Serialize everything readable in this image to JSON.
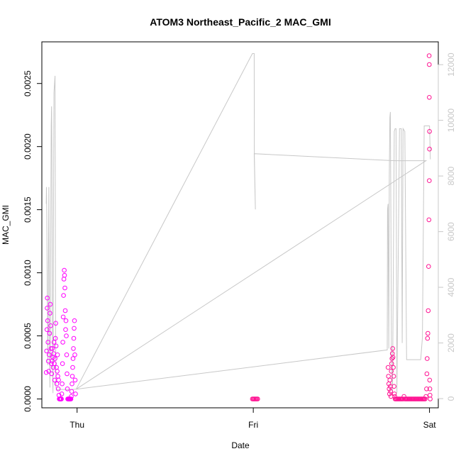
{
  "chart_data": {
    "type": "scatter",
    "title": "ATOM3 Northeast_Pacific_2 MAC_GMI",
    "xlabel": "Date",
    "ylabel": "MAC_GMI",
    "x_ticks": [
      "Thu",
      "Fri",
      "Sat"
    ],
    "x_range_days": [
      -0.2,
      2.05
    ],
    "y_ticks": [
      "0.0000",
      "0.0005",
      "0.0010",
      "0.0015",
      "0.0020",
      "0.0025"
    ],
    "ylim": [
      -7e-05,
      0.00283
    ],
    "y2_ticks": [
      "0",
      "2000",
      "4000",
      "6000",
      "8000",
      "10000",
      "12000"
    ],
    "y2lim": [
      -330,
      12820
    ],
    "grid": false,
    "colors": {
      "points": "#ff1493",
      "points_alt": "#ff00ff",
      "line": "#c8c8c8",
      "axis": "#000000",
      "axis2": "#c8c8c8"
    },
    "series": [
      {
        "type": "scatter",
        "y_axis": "left",
        "points": [
          [
            -0.175,
            0.00021
          ],
          [
            -0.173,
            0.00038
          ],
          [
            -0.171,
            0.00055
          ],
          [
            -0.17,
            0.00072
          ],
          [
            -0.169,
            0.0008
          ],
          [
            -0.167,
            0.00062
          ],
          [
            -0.165,
            0.00045
          ],
          [
            -0.163,
            0.0003
          ],
          [
            -0.161,
            0.00022
          ],
          [
            -0.158,
            0.00035
          ],
          [
            -0.156,
            0.00052
          ],
          [
            -0.154,
            0.00068
          ],
          [
            -0.152,
            0.00075
          ],
          [
            -0.15,
            0.00058
          ],
          [
            -0.148,
            0.0004
          ],
          [
            -0.146,
            0.00028
          ],
          [
            -0.144,
            0.0002
          ],
          [
            -0.142,
            0.0003
          ],
          [
            -0.14,
            0.0004
          ],
          [
            -0.137,
            0.00033
          ],
          [
            -0.135,
            0.00025
          ],
          [
            -0.133,
            0.00036
          ],
          [
            -0.131,
            0.00045
          ],
          [
            -0.129,
            0.00028
          ],
          [
            -0.127,
            0.00015
          ],
          [
            -0.125,
            0.00032
          ],
          [
            -0.123,
            0.00048
          ],
          [
            -0.121,
            0.0006
          ],
          [
            -0.119,
            0.00042
          ],
          [
            -0.117,
            0.00025
          ],
          [
            -0.115,
            0.00012
          ],
          [
            -0.113,
            0.00022
          ],
          [
            -0.111,
            0.00035
          ],
          [
            -0.109,
            0.00018
          ],
          [
            -0.107,
            8e-05
          ],
          [
            -0.105,
            0.00015
          ],
          [
            -0.103,
            3e-05
          ],
          [
            -0.101,
            0.0
          ],
          [
            -0.099,
            0.0
          ],
          [
            -0.097,
            0.0
          ],
          [
            -0.095,
            0.0
          ],
          [
            -0.093,
            0.0
          ],
          [
            -0.091,
            0.0
          ],
          [
            -0.089,
            0.0
          ],
          [
            -0.087,
            4e-05
          ],
          [
            -0.085,
            0.00012
          ],
          [
            -0.083,
            0.00028
          ],
          [
            -0.081,
            0.00045
          ],
          [
            -0.079,
            0.00065
          ],
          [
            -0.077,
            0.00082
          ],
          [
            -0.075,
            0.00095
          ],
          [
            -0.073,
            0.00102
          ],
          [
            -0.071,
            0.00098
          ],
          [
            -0.069,
            0.00088
          ],
          [
            -0.067,
            0.0007
          ],
          [
            -0.065,
            0.00055
          ],
          [
            -0.063,
            0.00062
          ],
          [
            -0.061,
            0.0005
          ],
          [
            -0.059,
            0.00035
          ],
          [
            -0.057,
            0.0002
          ],
          [
            -0.055,
            8e-05
          ],
          [
            -0.053,
            0.0
          ],
          [
            -0.051,
            0.0
          ],
          [
            -0.049,
            0.0
          ],
          [
            -0.047,
            0.0
          ],
          [
            -0.045,
            0.0
          ],
          [
            -0.043,
            0.0
          ],
          [
            -0.041,
            0.0
          ],
          [
            -0.039,
            0.0
          ],
          [
            -0.037,
            0.0
          ],
          [
            -0.035,
            0.0
          ],
          [
            -0.033,
            2e-05
          ],
          [
            -0.031,
            6e-05
          ],
          [
            -0.029,
            0.00012
          ],
          [
            -0.027,
            0.00018
          ],
          [
            -0.025,
            0.00025
          ],
          [
            -0.023,
            0.00032
          ],
          [
            -0.021,
            0.0004
          ],
          [
            -0.019,
            0.00048
          ],
          [
            -0.017,
            0.00056
          ],
          [
            -0.015,
            0.00062
          ],
          [
            -0.013,
            0.00035
          ],
          [
            -0.011,
            0.00015
          ],
          [
            -0.009,
            4e-05
          ],
          [
            0.995,
            0.0
          ],
          [
            1.0,
            0.0
          ],
          [
            1.005,
            0.0
          ],
          [
            1.01,
            0.0
          ],
          [
            1.015,
            0.0
          ],
          [
            1.02,
            0.0
          ],
          [
            1.025,
            0.0
          ],
          [
            1.765,
            0.00025
          ],
          [
            1.767,
            0.00018
          ],
          [
            1.769,
            0.00012
          ],
          [
            1.771,
            8e-05
          ],
          [
            1.773,
            4e-05
          ],
          [
            1.775,
            0.00015
          ],
          [
            1.777,
            0.0001
          ],
          [
            1.779,
            6e-05
          ],
          [
            1.781,
            2e-05
          ],
          [
            1.783,
            0.00022
          ],
          [
            1.785,
            0.00028
          ],
          [
            1.787,
            0.00032
          ],
          [
            1.789,
            0.00036
          ],
          [
            1.791,
            0.0004
          ],
          [
            1.793,
            0.00033
          ],
          [
            1.795,
            0.00025
          ],
          [
            1.797,
            0.00018
          ],
          [
            1.799,
            0.0001
          ],
          [
            1.801,
            4e-05
          ],
          [
            1.803,
            2e-05
          ],
          [
            1.805,
            0.0
          ],
          [
            1.81,
            0.0
          ],
          [
            1.815,
            0.0
          ],
          [
            1.82,
            0.0
          ],
          [
            1.825,
            0.0
          ],
          [
            1.83,
            0.0
          ],
          [
            1.835,
            0.0
          ],
          [
            1.84,
            0.0
          ],
          [
            1.845,
            0.0
          ],
          [
            1.85,
            0.0
          ],
          [
            1.855,
            2e-05
          ],
          [
            1.86,
            0.0
          ],
          [
            1.865,
            0.0
          ],
          [
            1.87,
            0.0
          ],
          [
            1.875,
            0.0
          ],
          [
            1.88,
            0.0
          ],
          [
            1.885,
            0.0
          ],
          [
            1.89,
            0.0
          ],
          [
            1.895,
            0.0
          ],
          [
            1.9,
            0.0
          ],
          [
            1.905,
            0.0
          ],
          [
            1.91,
            0.0
          ],
          [
            1.915,
            0.0
          ],
          [
            1.92,
            0.0
          ],
          [
            1.925,
            0.0
          ],
          [
            1.93,
            0.0
          ],
          [
            1.935,
            0.0
          ],
          [
            1.94,
            0.0
          ],
          [
            1.945,
            0.0
          ],
          [
            1.95,
            0.0
          ],
          [
            1.955,
            0.0
          ],
          [
            1.96,
            0.0
          ],
          [
            1.965,
            0.0
          ],
          [
            1.97,
            0.0
          ],
          [
            1.975,
            0.0
          ],
          [
            1.98,
            2e-05
          ],
          [
            1.983,
            8e-05
          ],
          [
            1.985,
            0.0002
          ],
          [
            1.987,
            0.00032
          ],
          [
            1.989,
            0.00048
          ],
          [
            1.991,
            0.00052
          ],
          [
            1.993,
            0.0007
          ],
          [
            1.995,
            0.00105
          ],
          [
            1.997,
            0.00142
          ],
          [
            1.999,
            0.00173
          ],
          [
            2.0,
            0.00198
          ],
          [
            2.0,
            0.00212
          ],
          [
            1.999,
            0.00239
          ],
          [
            1.999,
            0.00265
          ],
          [
            1.998,
            0.00272
          ],
          [
            2.001,
            0.00015
          ],
          [
            2.002,
            8e-05
          ],
          [
            2.003,
            3e-05
          ],
          [
            2.004,
            0.0
          ]
        ]
      },
      {
        "type": "line",
        "y_axis": "right",
        "points": [
          [
            -0.175,
            7000
          ],
          [
            -0.174,
            7600
          ],
          [
            -0.172,
            6400
          ],
          [
            -0.17,
            4400
          ],
          [
            -0.168,
            2600
          ],
          [
            -0.166,
            1200
          ],
          [
            -0.164,
            2600
          ],
          [
            -0.162,
            5200
          ],
          [
            -0.16,
            7600
          ],
          [
            -0.158,
            4800
          ],
          [
            -0.156,
            2000
          ],
          [
            -0.154,
            400
          ],
          [
            -0.151,
            2800
          ],
          [
            -0.149,
            6800
          ],
          [
            -0.147,
            9800
          ],
          [
            -0.145,
            10500
          ],
          [
            -0.143,
            8800
          ],
          [
            -0.141,
            4400
          ],
          [
            -0.139,
            800
          ],
          [
            -0.137,
            200
          ],
          [
            -0.135,
            3400
          ],
          [
            -0.133,
            7800
          ],
          [
            -0.131,
            11000
          ],
          [
            -0.129,
            11200
          ],
          [
            -0.127,
            11400
          ],
          [
            -0.125,
            11600
          ],
          [
            -0.124,
            8400
          ],
          [
            -0.123,
            5200
          ],
          [
            -0.122,
            2400
          ],
          [
            -0.12,
            400
          ],
          [
            -0.115,
            330
          ],
          [
            -0.07,
            330
          ],
          [
            -0.03,
            330
          ],
          [
            -0.005,
            340
          ],
          [
            0.995,
            12400
          ],
          [
            1.005,
            12400
          ],
          [
            1.006,
            8800
          ],
          [
            1.012,
            6800
          ],
          [
            1.005,
            8800
          ],
          [
            1.8,
            8550
          ],
          [
            1.98,
            8550
          ],
          [
            -0.005,
            340
          ],
          [
            1.76,
            1750
          ],
          [
            1.762,
            6800
          ],
          [
            1.765,
            7000
          ],
          [
            1.767,
            4200
          ],
          [
            1.769,
            1800
          ],
          [
            1.772,
            8000
          ],
          [
            1.775,
            10100
          ],
          [
            1.778,
            10300
          ],
          [
            1.781,
            6400
          ],
          [
            1.784,
            1500
          ],
          [
            1.79,
            200
          ],
          [
            1.8,
            9600
          ],
          [
            1.805,
            9700
          ],
          [
            1.81,
            9700
          ],
          [
            1.815,
            200
          ],
          [
            1.83,
            9700
          ],
          [
            1.84,
            9700
          ],
          [
            1.845,
            2000
          ],
          [
            1.85,
            9700
          ],
          [
            1.86,
            9600
          ],
          [
            1.87,
            1400
          ],
          [
            1.9,
            1400
          ],
          [
            1.95,
            1400
          ],
          [
            1.96,
            2200
          ],
          [
            1.97,
            9800
          ],
          [
            1.98,
            9800
          ],
          [
            1.99,
            9800
          ],
          [
            2.0,
            9800
          ],
          [
            2.005,
            8600
          ]
        ]
      }
    ]
  }
}
